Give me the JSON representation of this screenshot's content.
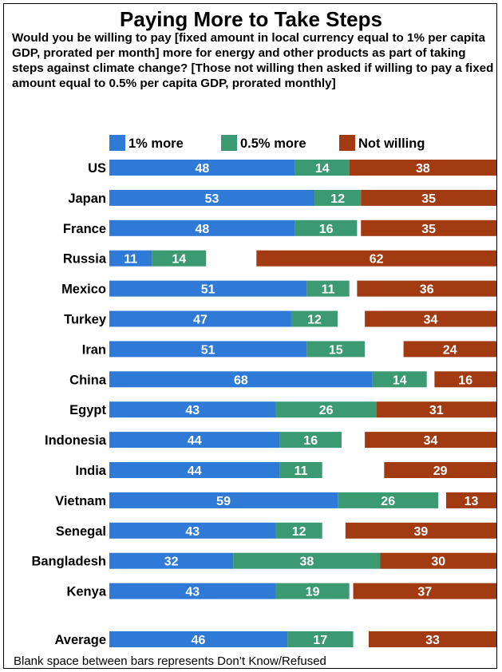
{
  "title": "Paying More to Take Steps",
  "subtitle": "Would you be willing to pay [fixed amount in local currency equal to 1% per capita GDP, prorated per month] more for energy and other products as part of taking steps against climate change? [Those not willing then asked if willing to pay a fixed amount equal to 0.5% per capita GDP, prorated monthly]",
  "footnote": "Blank space between bars represents Don’t Know/Refused",
  "colors": {
    "one_pct": "#2f7ad6",
    "half_pct": "#3c9a72",
    "not_willing": "#a23a12"
  },
  "chart_data": {
    "type": "bar",
    "orientation": "horizontal",
    "stacked": true,
    "categories": [
      "US",
      "Japan",
      "France",
      "Russia",
      "Mexico",
      "Turkey",
      "Iran",
      "China",
      "Egypt",
      "Indonesia",
      "India",
      "Vietnam",
      "Senegal",
      "Bangladesh",
      "Kenya",
      "Average"
    ],
    "series": [
      {
        "name": "1% more",
        "color": "#2f7ad6",
        "values": [
          48,
          53,
          48,
          11,
          51,
          47,
          51,
          68,
          43,
          44,
          44,
          59,
          43,
          32,
          43,
          46
        ]
      },
      {
        "name": "0.5% more",
        "color": "#3c9a72",
        "values": [
          14,
          12,
          16,
          14,
          11,
          12,
          15,
          14,
          26,
          16,
          11,
          26,
          12,
          38,
          19,
          17
        ]
      },
      {
        "name": "Not willing",
        "color": "#a23a12",
        "values": [
          38,
          35,
          35,
          62,
          36,
          34,
          24,
          16,
          31,
          34,
          29,
          13,
          39,
          30,
          37,
          33
        ],
        "right_aligned": true
      }
    ],
    "xlim": [
      0,
      100
    ],
    "legend": "top",
    "grid": false,
    "gap_before_last": true
  }
}
